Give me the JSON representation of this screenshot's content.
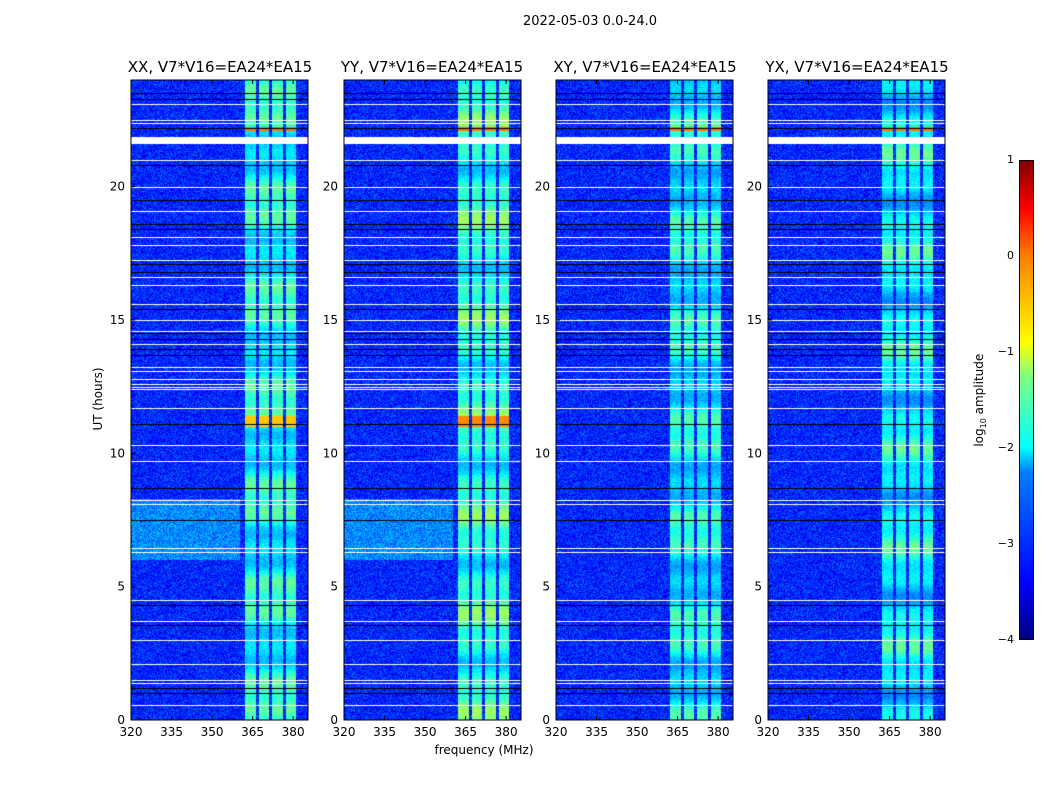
{
  "chart_data": {
    "type": "heatmap",
    "title": "2022-05-03 0.0-24.0",
    "xlabel": "frequency (MHz)",
    "ylabel": "UT (hours)",
    "xlim": [
      320,
      385.5
    ],
    "ylim": [
      0,
      24
    ],
    "xticks": [
      "320",
      "335",
      "350",
      "365",
      "380"
    ],
    "xtick_values": [
      320,
      335,
      350,
      365,
      380
    ],
    "yticks": [
      "0",
      "5",
      "10",
      "15",
      "20"
    ],
    "ytick_values": [
      0,
      5,
      10,
      15,
      20
    ],
    "panels": [
      {
        "title": "XX, V7*V16=EA24*EA15",
        "rfi_boost": 0
      },
      {
        "title": "YY, V7*V16=EA24*EA15",
        "rfi_boost": 0.15
      },
      {
        "title": "XY, V7*V16=EA24*EA15",
        "rfi_boost": -0.1
      },
      {
        "title": "YX, V7*V16=EA24*EA15",
        "rfi_boost": -0.1
      }
    ],
    "rfi_channels_mhz": [
      [
        362,
        366
      ],
      [
        367,
        371
      ],
      [
        372,
        376
      ],
      [
        377,
        381
      ]
    ],
    "background_log_amplitude": -3.2,
    "rfi_log_amplitude": -1.6,
    "strong_rfi_hours": [
      [
        11.0,
        11.4,
        -0.6
      ]
    ],
    "flagged_white_hours": [
      0.56,
      1.39,
      1.5,
      2.1,
      3.0,
      3.7,
      4.5,
      6.3,
      6.45,
      8.1,
      8.25,
      9.7,
      10.3,
      11.7,
      12.4,
      12.5,
      12.6,
      12.8,
      13.1,
      13.25,
      14.1,
      14.6,
      15.0,
      15.6,
      16.3,
      16.6,
      17.25,
      17.8,
      18.1,
      19.1,
      20.0,
      21.0,
      21.75,
      21.8,
      22.4,
      22.5,
      23.1
    ],
    "gap_black_hours": [
      1.0,
      1.2,
      3.56,
      4.3,
      7.5,
      8.7,
      11.1,
      13.7,
      13.9,
      14.3,
      14.5,
      15.4,
      16.8,
      17.1,
      18.4,
      18.6,
      19.5,
      20.8,
      22.2,
      23.3,
      23.5
    ],
    "colorbar": {
      "label_prefix": "log",
      "label_sub": "10",
      "label_suffix": " amplitude",
      "range": [
        -4,
        1
      ],
      "ticks": [
        "1",
        "0",
        "−1",
        "−2",
        "−3",
        "−4"
      ],
      "tick_values": [
        1,
        0,
        -1,
        -2,
        -3,
        -4
      ],
      "colormap": "jet"
    }
  }
}
